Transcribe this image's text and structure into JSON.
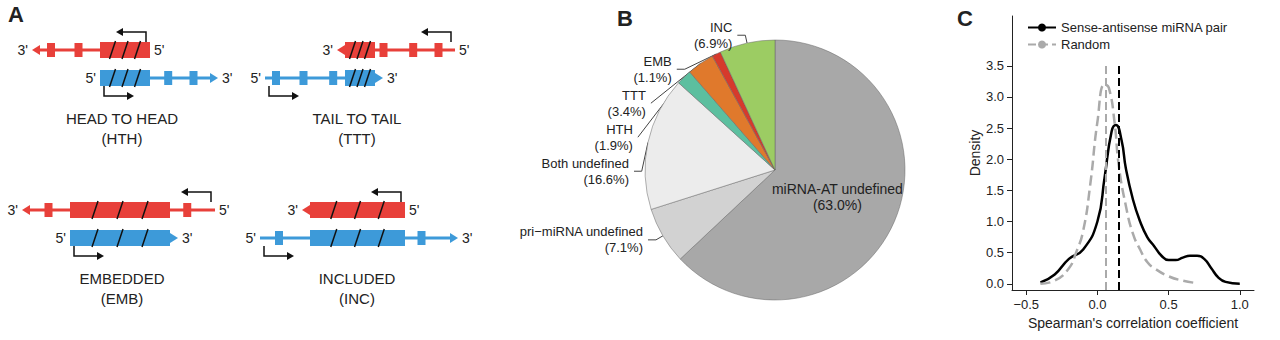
{
  "diagram": {
    "label": "A",
    "arrangements": [
      {
        "name": "HEAD TO HEAD",
        "abbreviation": "(HTH)",
        "red_ends": [
          "3'",
          "5'"
        ],
        "blue_ends": [
          "5'",
          "3'"
        ]
      },
      {
        "name": "TAIL TO TAIL",
        "abbreviation": "(TTT)",
        "red_ends": [
          "3'",
          "5'"
        ],
        "blue_ends": [
          "5'",
          "3'"
        ]
      },
      {
        "name": "EMBEDDED",
        "abbreviation": "(EMB)",
        "red_ends": [
          "3'",
          "5'"
        ],
        "blue_ends": [
          "5'",
          "3'"
        ]
      },
      {
        "name": "INCLUDED",
        "abbreviation": "(INC)",
        "red_ends": [
          "3'",
          "5'"
        ],
        "blue_ends": [
          "5'",
          "3'"
        ]
      }
    ]
  },
  "chart_data": [
    {
      "type": "pie",
      "title": "B",
      "categories": [
        "miRNA-AT undefined",
        "pri−miRNA undefined",
        "Both undefined",
        "HTH",
        "TTT",
        "EMB",
        "INC"
      ],
      "values": [
        63.0,
        7.1,
        16.6,
        1.9,
        3.4,
        1.1,
        6.9
      ],
      "value_labels": [
        "(63.0%)",
        "(7.1%)",
        "(16.6%)",
        "(1.9%)",
        "(3.4%)",
        "(1.1%)",
        "(6.9%)"
      ],
      "colors": [
        "#a8a8a8",
        "#d2d2d2",
        "#ececec",
        "#5cbf9f",
        "#e0792c",
        "#d63a2c",
        "#9ccc63"
      ],
      "data_labels": true
    },
    {
      "type": "line",
      "title": "C",
      "xlabel": "Spearman's correlation coefficient",
      "ylabel": "Density",
      "xlim": [
        -0.6,
        1.1
      ],
      "xticks": [
        {
          "value": -0.5,
          "label": "−0.5"
        },
        {
          "value": 0,
          "label": "0.0"
        },
        {
          "value": 0.5,
          "label": "0.5"
        },
        {
          "value": 1.0,
          "label": "1.0"
        }
      ],
      "ylim": [
        -0.1,
        4.3
      ],
      "yticks": [
        {
          "value": 0,
          "label": "0.0"
        },
        {
          "value": 0.5,
          "label": "0.5"
        },
        {
          "value": 1.0,
          "label": "1.0"
        },
        {
          "value": 1.5,
          "label": "1.5"
        },
        {
          "value": 2.0,
          "label": "2.0"
        },
        {
          "value": 2.5,
          "label": "2.5"
        },
        {
          "value": 3.0,
          "label": "3.0"
        },
        {
          "value": 3.5,
          "label": "3.5"
        }
      ],
      "grid": false,
      "legend": "upper left",
      "series": [
        {
          "name": "Sense-antisense miRNA pair",
          "color": "#000000",
          "line_style": "solid",
          "median": 0.15,
          "x": [
            -0.4,
            -0.3,
            -0.2,
            -0.1,
            0.0,
            0.05,
            0.1,
            0.13,
            0.17,
            0.2,
            0.25,
            0.3,
            0.35,
            0.4,
            0.45,
            0.5,
            0.55,
            0.6,
            0.65,
            0.7,
            0.75,
            0.8,
            0.85,
            0.9,
            1.0
          ],
          "values": [
            0.02,
            0.15,
            0.4,
            0.55,
            1.0,
            1.7,
            2.45,
            2.55,
            2.3,
            1.85,
            1.35,
            1.0,
            0.75,
            0.6,
            0.45,
            0.38,
            0.38,
            0.42,
            0.45,
            0.45,
            0.4,
            0.25,
            0.1,
            0.03,
            0.0
          ]
        },
        {
          "name": "Random",
          "color": "#aaaaaa",
          "line_style": "dashed",
          "median": 0.06,
          "x": [
            -0.4,
            -0.3,
            -0.2,
            -0.15,
            -0.1,
            -0.05,
            0.0,
            0.05,
            0.08,
            0.12,
            0.15,
            0.2,
            0.25,
            0.3,
            0.35,
            0.4,
            0.5,
            0.6,
            0.7
          ],
          "values": [
            0.0,
            0.05,
            0.25,
            0.5,
            0.85,
            1.6,
            2.6,
            3.2,
            3.15,
            2.6,
            1.9,
            1.25,
            0.8,
            0.55,
            0.35,
            0.25,
            0.12,
            0.05,
            0.01
          ]
        }
      ]
    }
  ]
}
